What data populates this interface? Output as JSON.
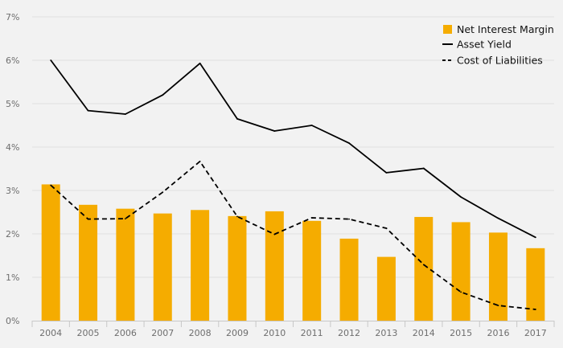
{
  "chart_data": {
    "type": "bar",
    "title": "",
    "xlabel": "",
    "ylabel": "",
    "categories": [
      "2004",
      "2005",
      "2006",
      "2007",
      "2008",
      "2009",
      "2010",
      "2011",
      "2012",
      "2013",
      "2014",
      "2015",
      "2016",
      "2017"
    ],
    "ylim": [
      0,
      7
    ],
    "yticks": [
      "0%",
      "1%",
      "2%",
      "3%",
      "4%",
      "5%",
      "6%",
      "7%"
    ],
    "grid": true,
    "legend_position": "top-right",
    "series": [
      {
        "name": "Net Interest Margin",
        "kind": "bar",
        "color": "#f5ac00",
        "values": [
          3.14,
          2.67,
          2.58,
          2.47,
          2.55,
          2.41,
          2.52,
          2.3,
          1.89,
          1.47,
          2.39,
          2.27,
          2.03,
          1.67
        ]
      },
      {
        "name": "Asset Yield",
        "kind": "line",
        "style": "solid",
        "color": "#000000",
        "values": [
          6.0,
          4.84,
          4.76,
          5.2,
          5.93,
          4.65,
          4.37,
          4.5,
          4.09,
          3.41,
          3.51,
          2.85,
          2.36,
          1.92
        ]
      },
      {
        "name": "Cost of Liabilities",
        "kind": "line",
        "style": "dashed",
        "color": "#000000",
        "values": [
          3.12,
          2.34,
          2.35,
          2.96,
          3.67,
          2.4,
          1.99,
          2.37,
          2.34,
          2.13,
          1.29,
          0.66,
          0.35,
          0.26
        ]
      }
    ]
  }
}
